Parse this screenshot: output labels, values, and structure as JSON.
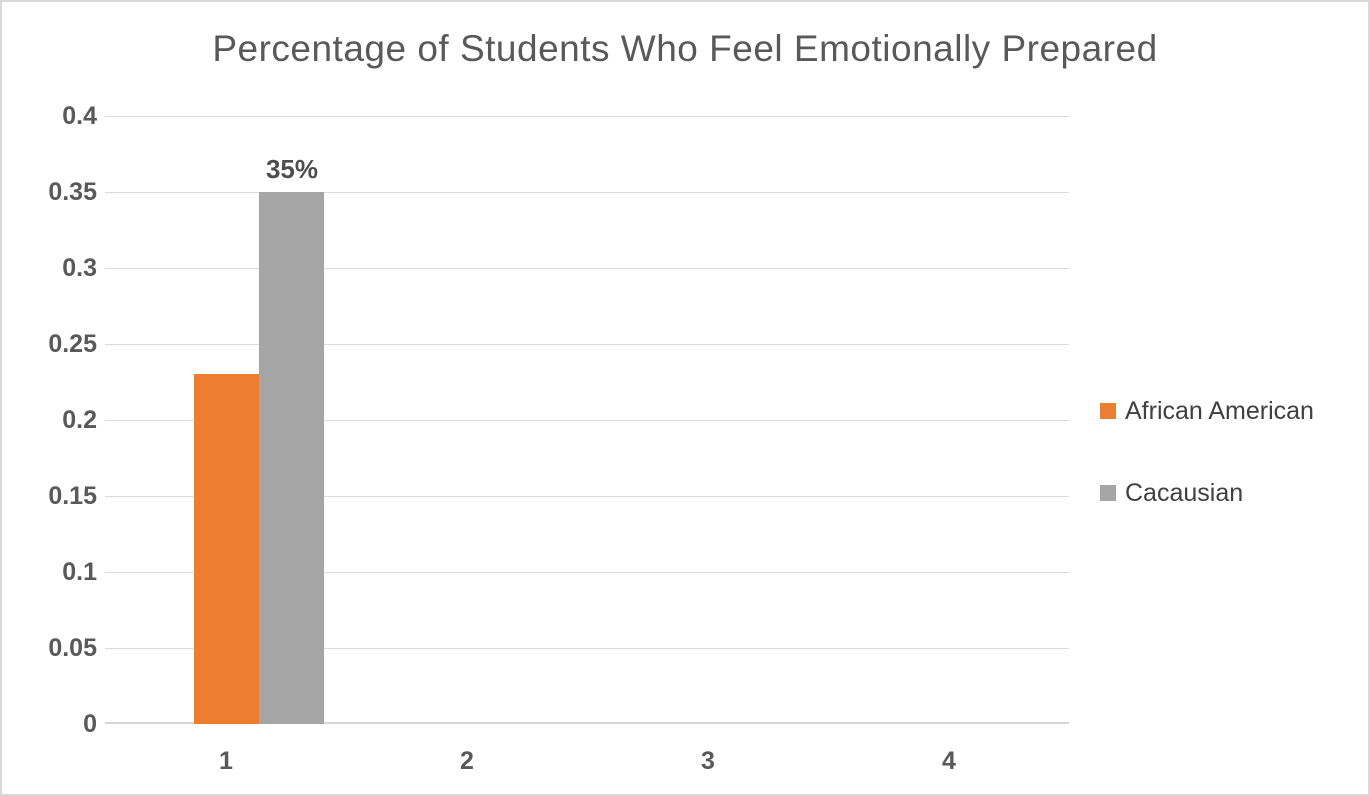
{
  "chart_data": {
    "type": "bar",
    "title": "Percentage of Students Who Feel Emotionally Prepared",
    "categories": [
      "1",
      "2",
      "3",
      "4"
    ],
    "series": [
      {
        "name": "African American",
        "color": "#ED7D31",
        "values": [
          0.23,
          null,
          null,
          null
        ]
      },
      {
        "name": "Cacausian",
        "color": "#A5A5A5",
        "values": [
          0.35,
          null,
          null,
          null
        ]
      }
    ],
    "data_labels": [
      {
        "series_index": 1,
        "category_index": 0,
        "text": "35%"
      }
    ],
    "ytick_labels": [
      "0.4",
      "0.35",
      "0.3",
      "0.25",
      "0.2",
      "0.15",
      "0.1",
      "0.05",
      "0"
    ],
    "yticks": [
      0.4,
      0.35,
      0.3,
      0.25,
      0.2,
      0.15,
      0.1,
      0.05,
      0
    ],
    "ylim": [
      0,
      0.4
    ],
    "xlabel": "",
    "ylabel": "",
    "grid": true,
    "legend_position": "right",
    "colors": {
      "title_text": "#595959",
      "axis_text": "#595959",
      "data_label_text": "#4d4d4d",
      "legend_text": "#404040",
      "gridline": "#dcdcdc",
      "axis_line": "#d6d6d6",
      "background": "#ffffff",
      "border": "#d8d8d8"
    }
  }
}
